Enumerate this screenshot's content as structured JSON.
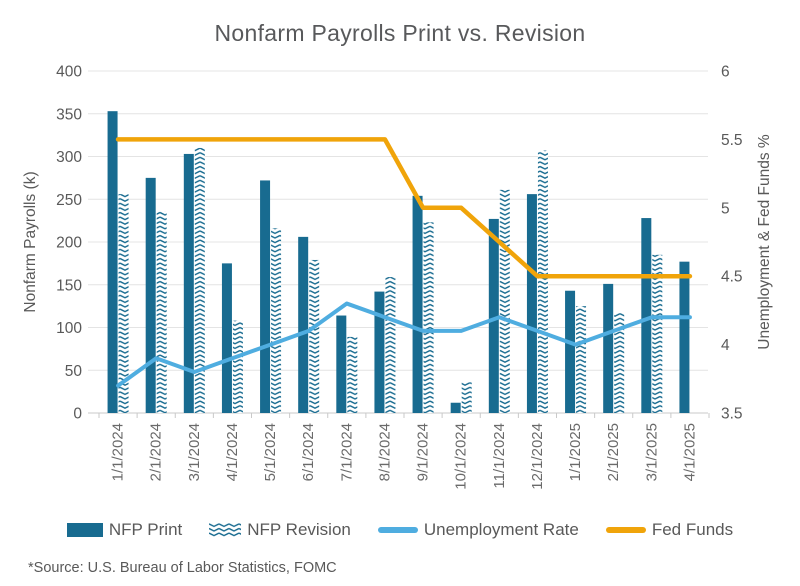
{
  "title": "Nonfarm Payrolls Print vs. Revision",
  "source_note": "*Source: U.S. Bureau of Labor Statistics, FOMC",
  "colors": {
    "nfp_print": "#186B90",
    "nfp_revision": "#186B90",
    "unemployment": "#4FADE0",
    "fed_funds": "#F0A40A",
    "grid": "#E4E4E4",
    "axis_line": "#C9C9C9",
    "text": "#595959"
  },
  "legend": {
    "items": [
      {
        "label": "NFP Print",
        "swatch": "bar-solid"
      },
      {
        "label": "NFP Revision",
        "swatch": "bar-pattern"
      },
      {
        "label": "Unemployment Rate",
        "swatch": "line-blue"
      },
      {
        "label": "Fed Funds",
        "swatch": "line-orange"
      }
    ]
  },
  "chart_data": {
    "type": "bar",
    "subtype": "combo-bar-line",
    "title": "Nonfarm Payrolls Print vs. Revision",
    "categories": [
      "1/1/2024",
      "2/1/2024",
      "3/1/2024",
      "4/1/2024",
      "5/1/2024",
      "6/1/2024",
      "7/1/2024",
      "8/1/2024",
      "9/1/2024",
      "10/1/2024",
      "11/1/2024",
      "12/1/2024",
      "1/1/2025",
      "2/1/2025",
      "3/1/2025",
      "4/1/2025"
    ],
    "series": [
      {
        "name": "NFP Print",
        "type": "bar",
        "axis": "left",
        "style": "solid",
        "values": [
          353,
          275,
          303,
          175,
          272,
          206,
          114,
          142,
          254,
          12,
          227,
          256,
          143,
          151,
          228,
          177
        ]
      },
      {
        "name": "NFP Revision",
        "type": "bar",
        "axis": "left",
        "style": "chevron-pattern",
        "values": [
          256,
          236,
          310,
          108,
          216,
          179,
          89,
          159,
          223,
          36,
          261,
          307,
          125,
          117,
          185,
          null
        ]
      },
      {
        "name": "Unemployment Rate",
        "type": "line",
        "axis": "right",
        "values": [
          3.7,
          3.9,
          3.8,
          3.9,
          4.0,
          4.1,
          4.3,
          4.2,
          4.1,
          4.1,
          4.2,
          4.1,
          4.0,
          4.1,
          4.2,
          4.2
        ]
      },
      {
        "name": "Fed Funds",
        "type": "line",
        "axis": "right",
        "values": [
          5.5,
          5.5,
          5.5,
          5.5,
          5.5,
          5.5,
          5.5,
          5.5,
          5.0,
          5.0,
          4.75,
          4.5,
          4.5,
          4.5,
          4.5,
          4.5
        ]
      }
    ],
    "left_axis": {
      "label": "Nonfarm Payrolls (k)",
      "min": 0,
      "max": 400,
      "step": 50
    },
    "right_axis": {
      "label": "Unemployment & Fed Funds %",
      "min": 3.5,
      "max": 6,
      "step": 0.5
    },
    "grid": true,
    "legend_position": "bottom"
  }
}
